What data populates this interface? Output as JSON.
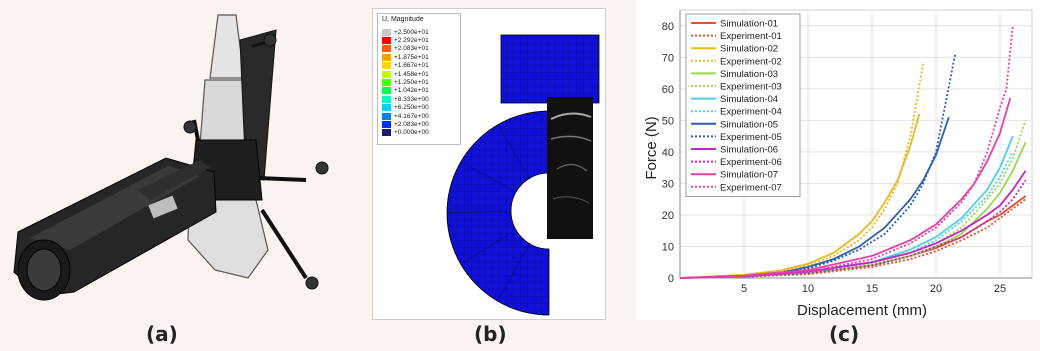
{
  "captions": {
    "a": "(a)",
    "b": "(b)",
    "c": "(c)"
  },
  "panel_b": {
    "contour_title": "U, Magnitude",
    "contour_labels": [
      "+2.500e+01",
      "+2.292e+01",
      "+2.083e+01",
      "+1.875e+01",
      "+1.667e+01",
      "+1.458e+01",
      "+1.250e+01",
      "+1.042e+01",
      "+8.333e+00",
      "+6.250e+00",
      "+4.167e+00",
      "+2.083e+00",
      "+0.000e+00"
    ],
    "contour_colors": [
      "#c8c8c8",
      "#ff0000",
      "#ff5a00",
      "#ffa000",
      "#ffd500",
      "#c8ff00",
      "#50ff00",
      "#00ff50",
      "#00ffc0",
      "#00d0ff",
      "#0080ff",
      "#0030ff",
      "#1a1a6e"
    ]
  },
  "chart_data": {
    "type": "line",
    "xlabel": "Displacement (mm)",
    "ylabel": "Force (N)",
    "xlim": [
      0,
      27.5
    ],
    "ylim": [
      0,
      85
    ],
    "xticks": [
      5,
      10,
      15,
      20,
      25
    ],
    "yticks": [
      0,
      10,
      20,
      30,
      40,
      50,
      60,
      70,
      80
    ],
    "grid": true,
    "legend_position": "top-left",
    "series": [
      {
        "name": "Simulation-01",
        "color": "#e8502a",
        "dash": false,
        "x": [
          0,
          5,
          10,
          15,
          18,
          20,
          22,
          24,
          25,
          26,
          27
        ],
        "y": [
          0,
          0.5,
          1.5,
          4,
          7,
          9.5,
          13,
          18,
          20,
          23,
          26
        ]
      },
      {
        "name": "Experiment-01",
        "color": "#e8502a",
        "dash": true,
        "x": [
          0,
          5,
          10,
          15,
          18,
          20,
          22,
          24,
          25,
          26,
          27
        ],
        "y": [
          0,
          0.4,
          1.2,
          3.5,
          6,
          8.5,
          12,
          16,
          19,
          22,
          25
        ]
      },
      {
        "name": "Simulation-02",
        "color": "#e8b923",
        "dash": false,
        "x": [
          0,
          5,
          8,
          10,
          12,
          14,
          15,
          16,
          17,
          18,
          18.7
        ],
        "y": [
          0,
          1,
          2.5,
          4.5,
          8,
          14,
          18,
          24,
          31,
          42,
          52
        ]
      },
      {
        "name": "Experiment-02",
        "color": "#e8b923",
        "dash": true,
        "x": [
          0,
          5,
          8,
          10,
          12,
          14,
          15,
          16,
          17,
          18,
          19
        ],
        "y": [
          0,
          0.8,
          2,
          4,
          7,
          12,
          16,
          22,
          30,
          45,
          68
        ]
      },
      {
        "name": "Simulation-03",
        "color": "#9ad84a",
        "dash": false,
        "x": [
          0,
          5,
          10,
          15,
          18,
          20,
          22,
          24,
          25,
          26,
          27
        ],
        "y": [
          0,
          0.4,
          1.5,
          4,
          7,
          10,
          14,
          22,
          27,
          34,
          43
        ]
      },
      {
        "name": "Experiment-03",
        "color": "#9ad84a",
        "dash": true,
        "x": [
          0,
          5,
          10,
          15,
          18,
          20,
          22,
          24,
          25,
          26,
          27
        ],
        "y": [
          0,
          0.4,
          1.5,
          4.5,
          8,
          11,
          16,
          25,
          30,
          38,
          50
        ]
      },
      {
        "name": "Simulation-04",
        "color": "#4fd0e0",
        "dash": false,
        "x": [
          0,
          5,
          10,
          15,
          18,
          20,
          22,
          24,
          25,
          26
        ],
        "y": [
          0,
          0.5,
          2,
          5,
          9,
          13,
          19,
          28,
          35,
          45
        ]
      },
      {
        "name": "Experiment-04",
        "color": "#4fd0e0",
        "dash": true,
        "x": [
          0,
          5,
          10,
          15,
          18,
          20,
          22,
          24,
          25,
          26
        ],
        "y": [
          0,
          0.5,
          2,
          5,
          8,
          12,
          18,
          26,
          32,
          40
        ]
      },
      {
        "name": "Simulation-05",
        "color": "#2f5fb0",
        "dash": false,
        "x": [
          0,
          5,
          8,
          10,
          12,
          14,
          16,
          18,
          19,
          20,
          21
        ],
        "y": [
          0,
          0.7,
          1.8,
          3.5,
          6,
          10,
          16,
          25,
          31,
          39,
          51
        ]
      },
      {
        "name": "Experiment-05",
        "color": "#2f5fb0",
        "dash": true,
        "x": [
          0,
          5,
          8,
          10,
          12,
          14,
          16,
          18,
          19,
          20,
          21.5
        ],
        "y": [
          0,
          0.6,
          1.5,
          3,
          5.5,
          9,
          14,
          23,
          30,
          40,
          71
        ]
      },
      {
        "name": "Simulation-06",
        "color": "#c026c8",
        "dash": false,
        "x": [
          0,
          5,
          10,
          15,
          18,
          20,
          22,
          24,
          25,
          26,
          27
        ],
        "y": [
          0,
          0.5,
          2,
          5,
          8,
          11,
          15,
          20,
          23,
          28,
          34
        ]
      },
      {
        "name": "Experiment-06",
        "color": "#c026c8",
        "dash": true,
        "x": [
          0,
          5,
          10,
          15,
          18,
          20,
          22,
          24,
          25,
          26,
          27
        ],
        "y": [
          0,
          0.4,
          1.5,
          4,
          7,
          10,
          13,
          18,
          21,
          25,
          31
        ]
      },
      {
        "name": "Simulation-07",
        "color": "#e83ea8",
        "dash": false,
        "x": [
          0,
          5,
          10,
          15,
          18,
          20,
          22,
          23,
          24,
          25,
          25.8
        ],
        "y": [
          0,
          0.7,
          2.5,
          7,
          12,
          17,
          25,
          30,
          37,
          46,
          57
        ]
      },
      {
        "name": "Experiment-07",
        "color": "#e83ea8",
        "dash": true,
        "x": [
          0,
          5,
          10,
          15,
          18,
          20,
          22,
          23,
          24,
          25,
          25.5,
          26
        ],
        "y": [
          0,
          0.6,
          2,
          6,
          11,
          16,
          24,
          30,
          40,
          54,
          60,
          80
        ]
      }
    ]
  }
}
